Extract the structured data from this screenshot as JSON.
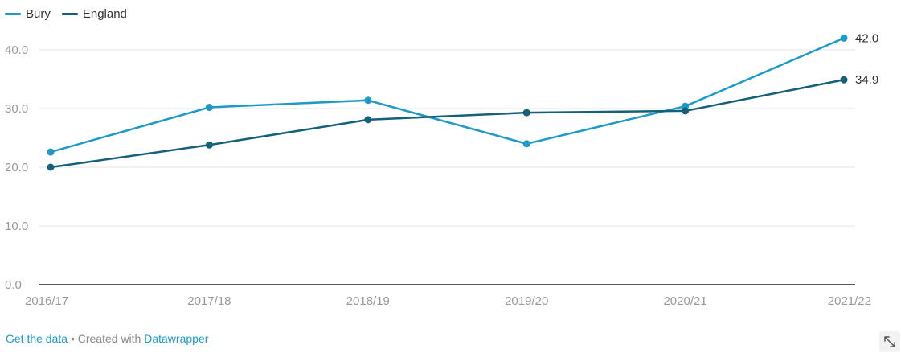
{
  "chart_data": {
    "type": "line",
    "title": "",
    "xlabel": "",
    "ylabel": "",
    "categories": [
      "2016/17",
      "2017/18",
      "2018/19",
      "2019/20",
      "2020/21",
      "2021/22"
    ],
    "y_ticks": [
      "0.0",
      "10.0",
      "20.0",
      "30.0",
      "40.0"
    ],
    "ylim": [
      0,
      42
    ],
    "grid": true,
    "legend_position": "top-left",
    "series": [
      {
        "name": "Bury",
        "color": "#1d9ac8",
        "values": [
          22.6,
          30.2,
          31.4,
          24.0,
          30.4,
          42.0
        ],
        "end_label": "42.0"
      },
      {
        "name": "England",
        "color": "#15607a",
        "values": [
          20.0,
          23.8,
          28.1,
          29.3,
          29.6,
          34.9
        ],
        "end_label": "34.9"
      }
    ]
  },
  "footer": {
    "get_data": "Get the data",
    "separator": " • Created with ",
    "tool": "Datawrapper"
  },
  "icons": {
    "expand": "expand-icon"
  }
}
